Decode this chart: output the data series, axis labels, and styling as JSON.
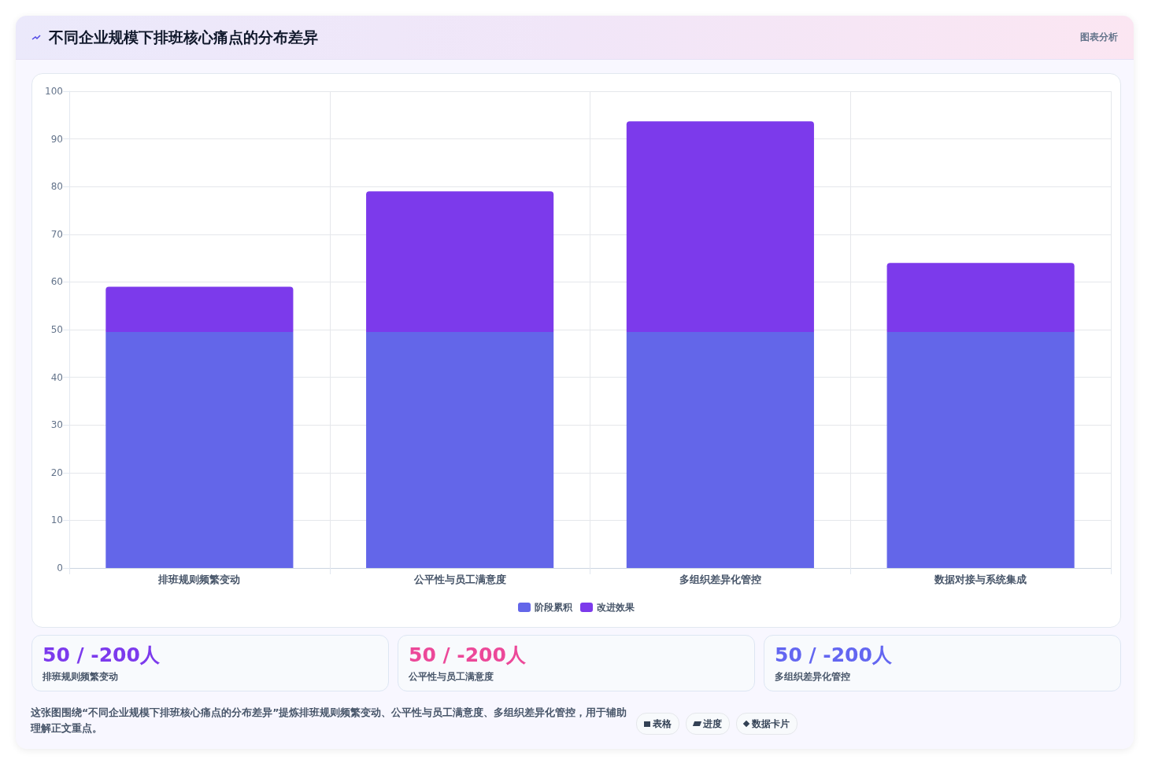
{
  "chart_data": {
    "type": "bar",
    "title": "不同企业规模下排班核心痛点的分布差异",
    "categories": [
      "排班规则频繁变动",
      "公平性与员工满意度",
      "多组织差异化管控",
      "数据对接与系统集成"
    ],
    "series": [
      {
        "name": "阶段累积",
        "color": "#6366e9",
        "values": [
          49.5,
          49.5,
          49.5,
          49.5
        ]
      },
      {
        "name": "改进效果",
        "color": "#7c3aeb",
        "values": [
          9.5,
          29.5,
          44.2,
          14.5
        ]
      }
    ],
    "stacked": true,
    "ylim": [
      0,
      100
    ],
    "yticks": [
      0,
      10,
      20,
      30,
      40,
      50,
      60,
      70,
      80,
      90,
      100
    ],
    "grid": true,
    "legend": "bottom",
    "annotations": [
      "图表分析",
      "50 / -200人",
      "排班规则频繁变动",
      "50 / -200人",
      "公平性与员工满意度",
      "50 / -200人",
      "多组织差异化管控",
      "这张图围绕“不同企业规模下排班核心痛点的分布差异”提炼排班规则频繁变动、公平性与员工满意度、多组织差异化管控，用于辅助理解正文重点。",
      "表格",
      "进度",
      "数据卡片"
    ]
  }
}
